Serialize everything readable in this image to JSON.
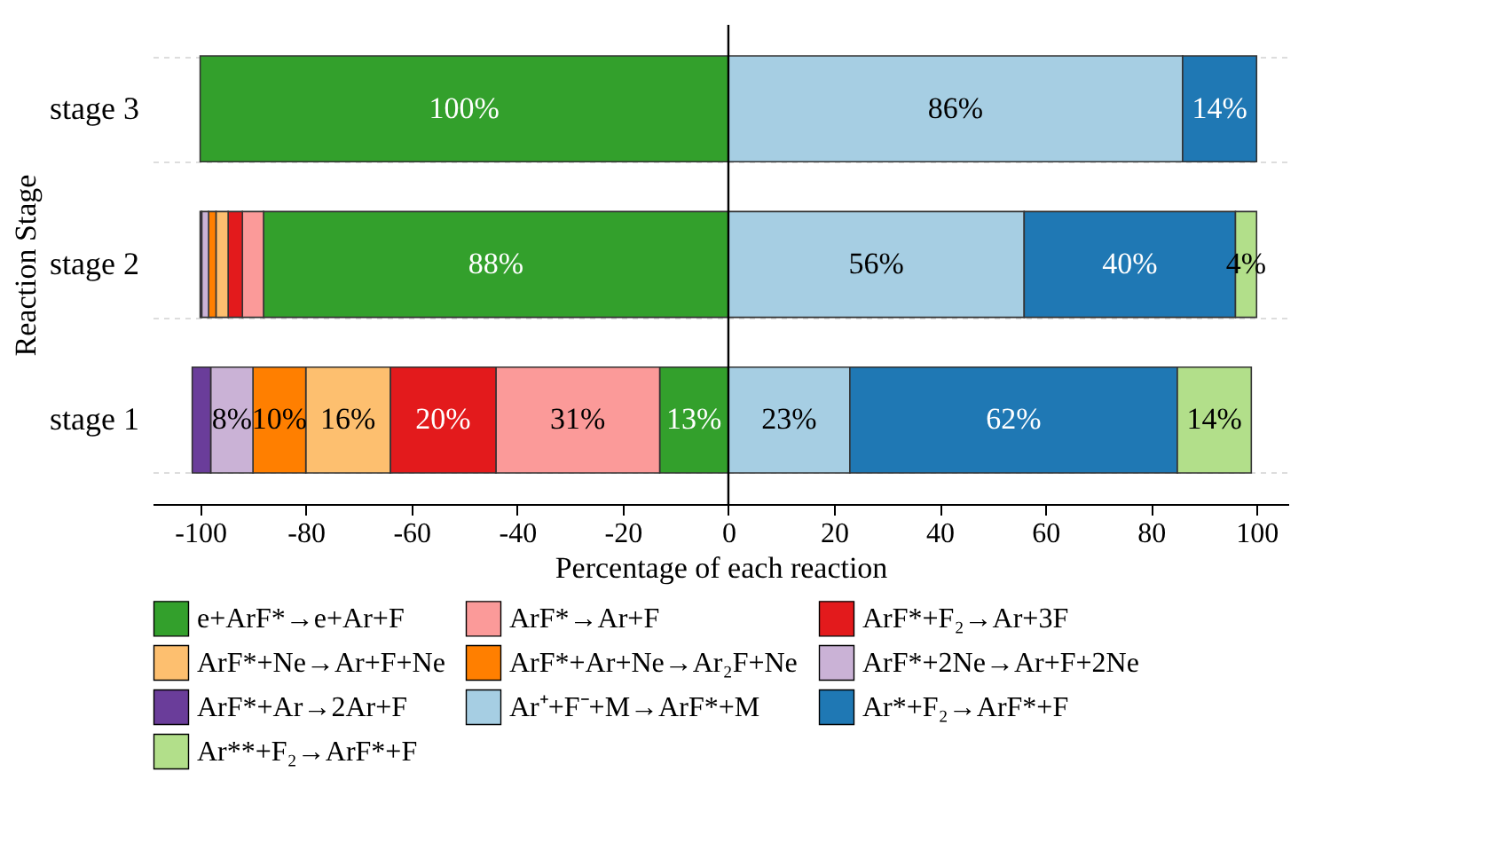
{
  "chart_data": {
    "type": "bar",
    "orientation": "horizontal",
    "xlabel": "Percentage of each reaction",
    "ylabel": "Reaction Stage",
    "categories": [
      "stage 3",
      "stage 2",
      "stage 1"
    ],
    "xlim": [
      -109,
      106
    ],
    "xticks": [
      -100,
      -80,
      -60,
      -40,
      -20,
      0,
      20,
      40,
      60,
      80,
      100
    ],
    "grid": "y",
    "legend": "bottom",
    "ref_lines": [
      {
        "axis": "x",
        "value": 0,
        "color": "#000000"
      }
    ],
    "series": [
      {
        "name": "e+ArF*→e+Ar+F",
        "color": "#33a02c",
        "base": [
          -100,
          -88,
          -13
        ],
        "values": [
          100,
          88,
          13
        ],
        "value_labels": [
          "100%",
          "88%",
          "13%"
        ]
      },
      {
        "name": "ArF*→Ar+F",
        "color": "#fb9a99",
        "base": [
          null,
          -92,
          -44
        ],
        "values": [
          null,
          4,
          31
        ],
        "value_labels": [
          null,
          null,
          "31%"
        ]
      },
      {
        "name": "ArF*+F₂→Ar+3F",
        "color": "#e31a1c",
        "base": [
          null,
          -94.7,
          -64
        ],
        "values": [
          null,
          2.7,
          20
        ],
        "value_labels": [
          null,
          null,
          "20%"
        ]
      },
      {
        "name": "ArF*+Ne→Ar+F+Ne",
        "color": "#fdbf6f",
        "base": [
          null,
          -97,
          -80
        ],
        "values": [
          null,
          2.3,
          16
        ],
        "value_labels": [
          null,
          null,
          "16%"
        ]
      },
      {
        "name": "ArF*+Ar+Ne→Ar₂F+Ne",
        "color": "#ff7f00",
        "base": [
          null,
          -98.4,
          -90
        ],
        "values": [
          null,
          1.4,
          10
        ],
        "value_labels": [
          null,
          null,
          "10%"
        ]
      },
      {
        "name": "ArF*+2Ne→Ar+F+2Ne",
        "color": "#cab2d6",
        "base": [
          null,
          -99.7,
          -98
        ],
        "values": [
          null,
          1.3,
          8
        ],
        "value_labels": [
          null,
          null,
          "8%"
        ]
      },
      {
        "name": "ArF*+Ar→2Ar+F",
        "color": "#6a3d9a",
        "base": [
          null,
          -100,
          -101.5
        ],
        "values": [
          null,
          0.3,
          3.5
        ]
      },
      {
        "name": "Ar⁺+F⁻+M→ArF*+M",
        "color": "#a6cee3",
        "base": [
          0,
          0,
          0
        ],
        "values": [
          86,
          56,
          23
        ],
        "value_labels": [
          "86%",
          "56%",
          "23%"
        ]
      },
      {
        "name": "Ar*+F₂→ArF*+F",
        "color": "#1f78b4",
        "base": [
          86,
          56,
          23
        ],
        "values": [
          14,
          40,
          62
        ],
        "value_labels": [
          "14%",
          "40%",
          "62%"
        ]
      },
      {
        "name": "Ar**+F₂→ArF*+F",
        "color": "#b2df8a",
        "base": [
          null,
          96,
          85
        ],
        "values": [
          null,
          4,
          14
        ],
        "value_labels": [
          null,
          "4%",
          "14%"
        ]
      }
    ]
  }
}
